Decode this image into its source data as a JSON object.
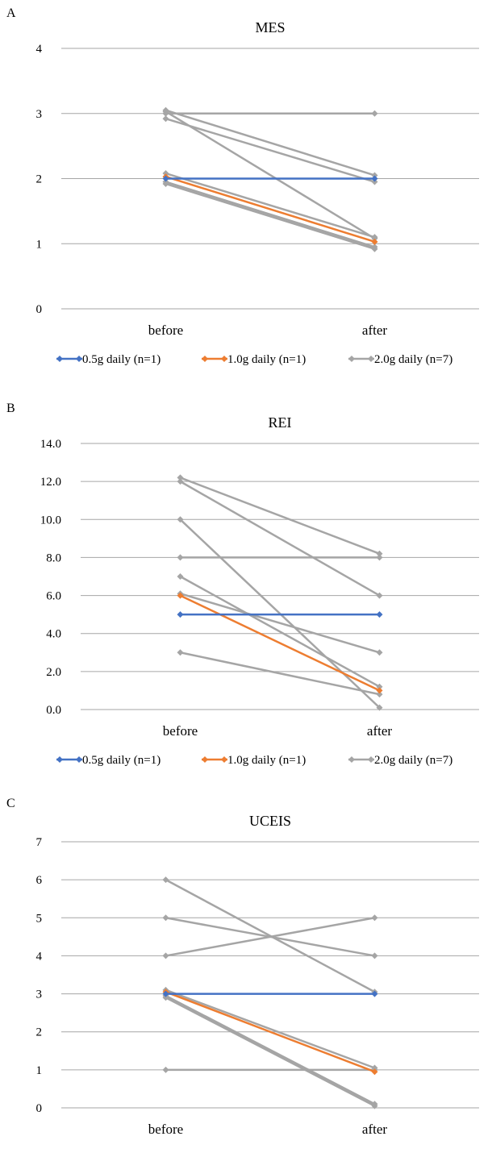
{
  "colors": {
    "series_05": "#4472c4",
    "series_10": "#ed7d31",
    "series_20": "#a5a5a5",
    "grid": "#a6a6a6",
    "text": "#000000"
  },
  "chart_data": [
    {
      "panel_letter": "A",
      "type": "line",
      "title": "MES",
      "categories": [
        "before",
        "after"
      ],
      "ylim": [
        0,
        4
      ],
      "yticks": [
        "0",
        "1",
        "2",
        "3",
        "4"
      ],
      "grid": true,
      "legend_position": "bottom",
      "series": [
        {
          "name": "0.5g daily (n=1)",
          "color": "#4472c4",
          "lines": [
            [
              2,
              2
            ]
          ]
        },
        {
          "name": "1.0g daily (n=1)",
          "color": "#ed7d31",
          "lines": [
            [
              2.03,
              1.03
            ]
          ]
        },
        {
          "name": "2.0g daily (n=7)",
          "color": "#a5a5a5",
          "lines": [
            [
              3.05,
              2.05
            ],
            [
              3,
              3
            ],
            [
              2.92,
              1.95
            ],
            [
              3.03,
              1.08
            ],
            [
              2.08,
              1.1
            ],
            [
              1.95,
              0.95
            ],
            [
              1.92,
              0.92
            ]
          ]
        }
      ]
    },
    {
      "panel_letter": "B",
      "type": "line",
      "title": "REI",
      "categories": [
        "before",
        "after"
      ],
      "ylim": [
        0,
        14
      ],
      "yticks": [
        "0.0",
        "2.0",
        "4.0",
        "6.0",
        "8.0",
        "10.0",
        "12.0",
        "14.0"
      ],
      "grid": true,
      "legend_position": "bottom",
      "series": [
        {
          "name": "0.5g daily (n=1)",
          "color": "#4472c4",
          "lines": [
            [
              5,
              5
            ]
          ]
        },
        {
          "name": "1.0g daily (n=1)",
          "color": "#ed7d31",
          "lines": [
            [
              6,
              1
            ]
          ]
        },
        {
          "name": "2.0g daily (n=7)",
          "color": "#a5a5a5",
          "lines": [
            [
              12.2,
              8.2
            ],
            [
              12,
              6
            ],
            [
              10,
              0.1
            ],
            [
              8,
              8
            ],
            [
              7,
              1.2
            ],
            [
              6.1,
              3
            ],
            [
              3,
              0.8
            ]
          ]
        }
      ]
    },
    {
      "panel_letter": "C",
      "type": "line",
      "title": "UCEIS",
      "categories": [
        "before",
        "after"
      ],
      "ylim": [
        0,
        7
      ],
      "yticks": [
        "0",
        "1",
        "2",
        "3",
        "4",
        "5",
        "6",
        "7"
      ],
      "grid": true,
      "legend_position": "bottom",
      "series": [
        {
          "name": "0.5g daily (n=1)",
          "color": "#4472c4",
          "lines": [
            [
              3,
              3
            ]
          ]
        },
        {
          "name": "1.0g daily (n=1)",
          "color": "#ed7d31",
          "lines": [
            [
              3.05,
              0.95
            ]
          ]
        },
        {
          "name": "2.0g daily (n=7)",
          "color": "#a5a5a5",
          "lines": [
            [
              6,
              3.05
            ],
            [
              5,
              4
            ],
            [
              4,
              5
            ],
            [
              3.1,
              1.05
            ],
            [
              2.95,
              0.1
            ],
            [
              2.9,
              0.05
            ],
            [
              1,
              1
            ]
          ]
        }
      ]
    }
  ]
}
